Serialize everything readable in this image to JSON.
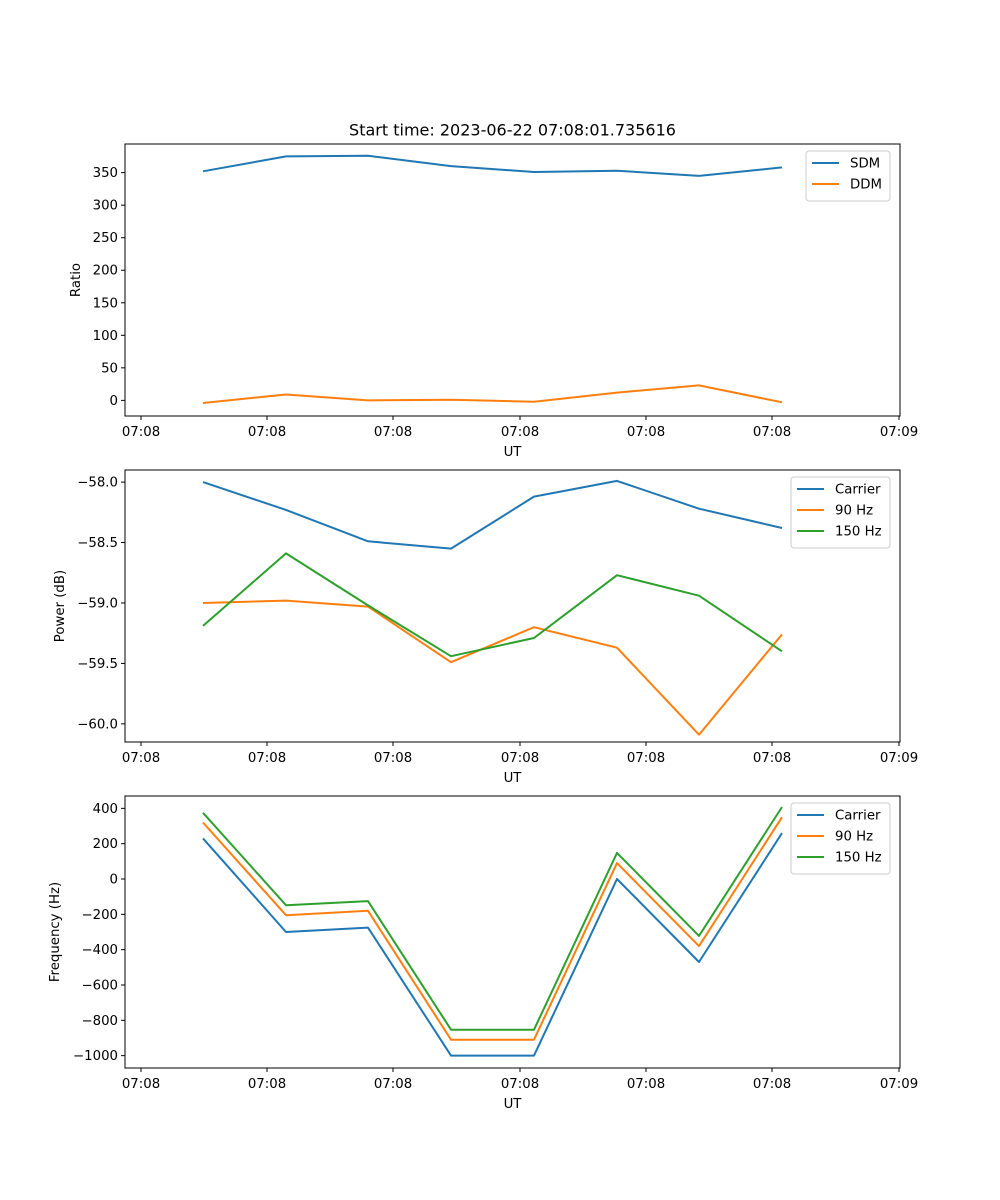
{
  "figure_title": "Start time: 2023-06-22 07:08:01.735616",
  "x_tick_labels": [
    "07:08",
    "07:08",
    "07:08",
    "07:08",
    "07:08",
    "07:08",
    "07:09"
  ],
  "colors": {
    "blue": "#1f77b4",
    "orange": "#ff7f0e",
    "green": "#2ca02c"
  },
  "chart_data": [
    {
      "type": "line",
      "title": "Start time: 2023-06-22 07:08:01.735616",
      "xlabel": "UT",
      "ylabel": "Ratio",
      "ylim": [
        -24,
        394
      ],
      "yticks": [
        0,
        50,
        100,
        150,
        200,
        250,
        300,
        350
      ],
      "legend_position": "top-right",
      "series": [
        {
          "name": "SDM",
          "color": "#1f77b4",
          "values": [
            352,
            375,
            376,
            360,
            351,
            353,
            345,
            358
          ]
        },
        {
          "name": "DDM",
          "color": "#ff7f0e",
          "values": [
            -4,
            9,
            0,
            1,
            -2,
            12,
            23,
            -3
          ]
        }
      ]
    },
    {
      "type": "line",
      "xlabel": "UT",
      "ylabel": "Power (dB)",
      "ylim": [
        -60.15,
        -57.9
      ],
      "yticks": [
        -60.0,
        -59.5,
        -59.0,
        -58.5,
        -58.0
      ],
      "legend_position": "top-right",
      "series": [
        {
          "name": "Carrier",
          "color": "#1f77b4",
          "values": [
            -58.0,
            -58.23,
            -58.49,
            -58.55,
            -58.12,
            -57.99,
            -58.22,
            -58.38
          ]
        },
        {
          "name": "90 Hz",
          "color": "#ff7f0e",
          "values": [
            -59.0,
            -58.98,
            -59.03,
            -59.49,
            -59.2,
            -59.37,
            -60.09,
            -59.26
          ]
        },
        {
          "name": "150 Hz",
          "color": "#2ca02c",
          "values": [
            -59.19,
            -58.59,
            -59.02,
            -59.44,
            -59.29,
            -58.77,
            -58.94,
            -59.4
          ]
        }
      ]
    },
    {
      "type": "line",
      "xlabel": "UT",
      "ylabel": "Frequency (Hz)",
      "ylim": [
        -1070,
        470
      ],
      "yticks": [
        -1000,
        -800,
        -600,
        -400,
        -200,
        0,
        200,
        400
      ],
      "legend_position": "top-right",
      "series": [
        {
          "name": "Carrier",
          "color": "#1f77b4",
          "values": [
            230,
            -300,
            -275,
            -1000,
            -1000,
            0,
            -470,
            260
          ]
        },
        {
          "name": "90 Hz",
          "color": "#ff7f0e",
          "values": [
            320,
            -205,
            -180,
            -910,
            -910,
            90,
            -380,
            350
          ]
        },
        {
          "name": "150 Hz",
          "color": "#2ca02c",
          "values": [
            375,
            -148,
            -125,
            -853,
            -853,
            148,
            -322,
            408
          ]
        }
      ]
    }
  ]
}
